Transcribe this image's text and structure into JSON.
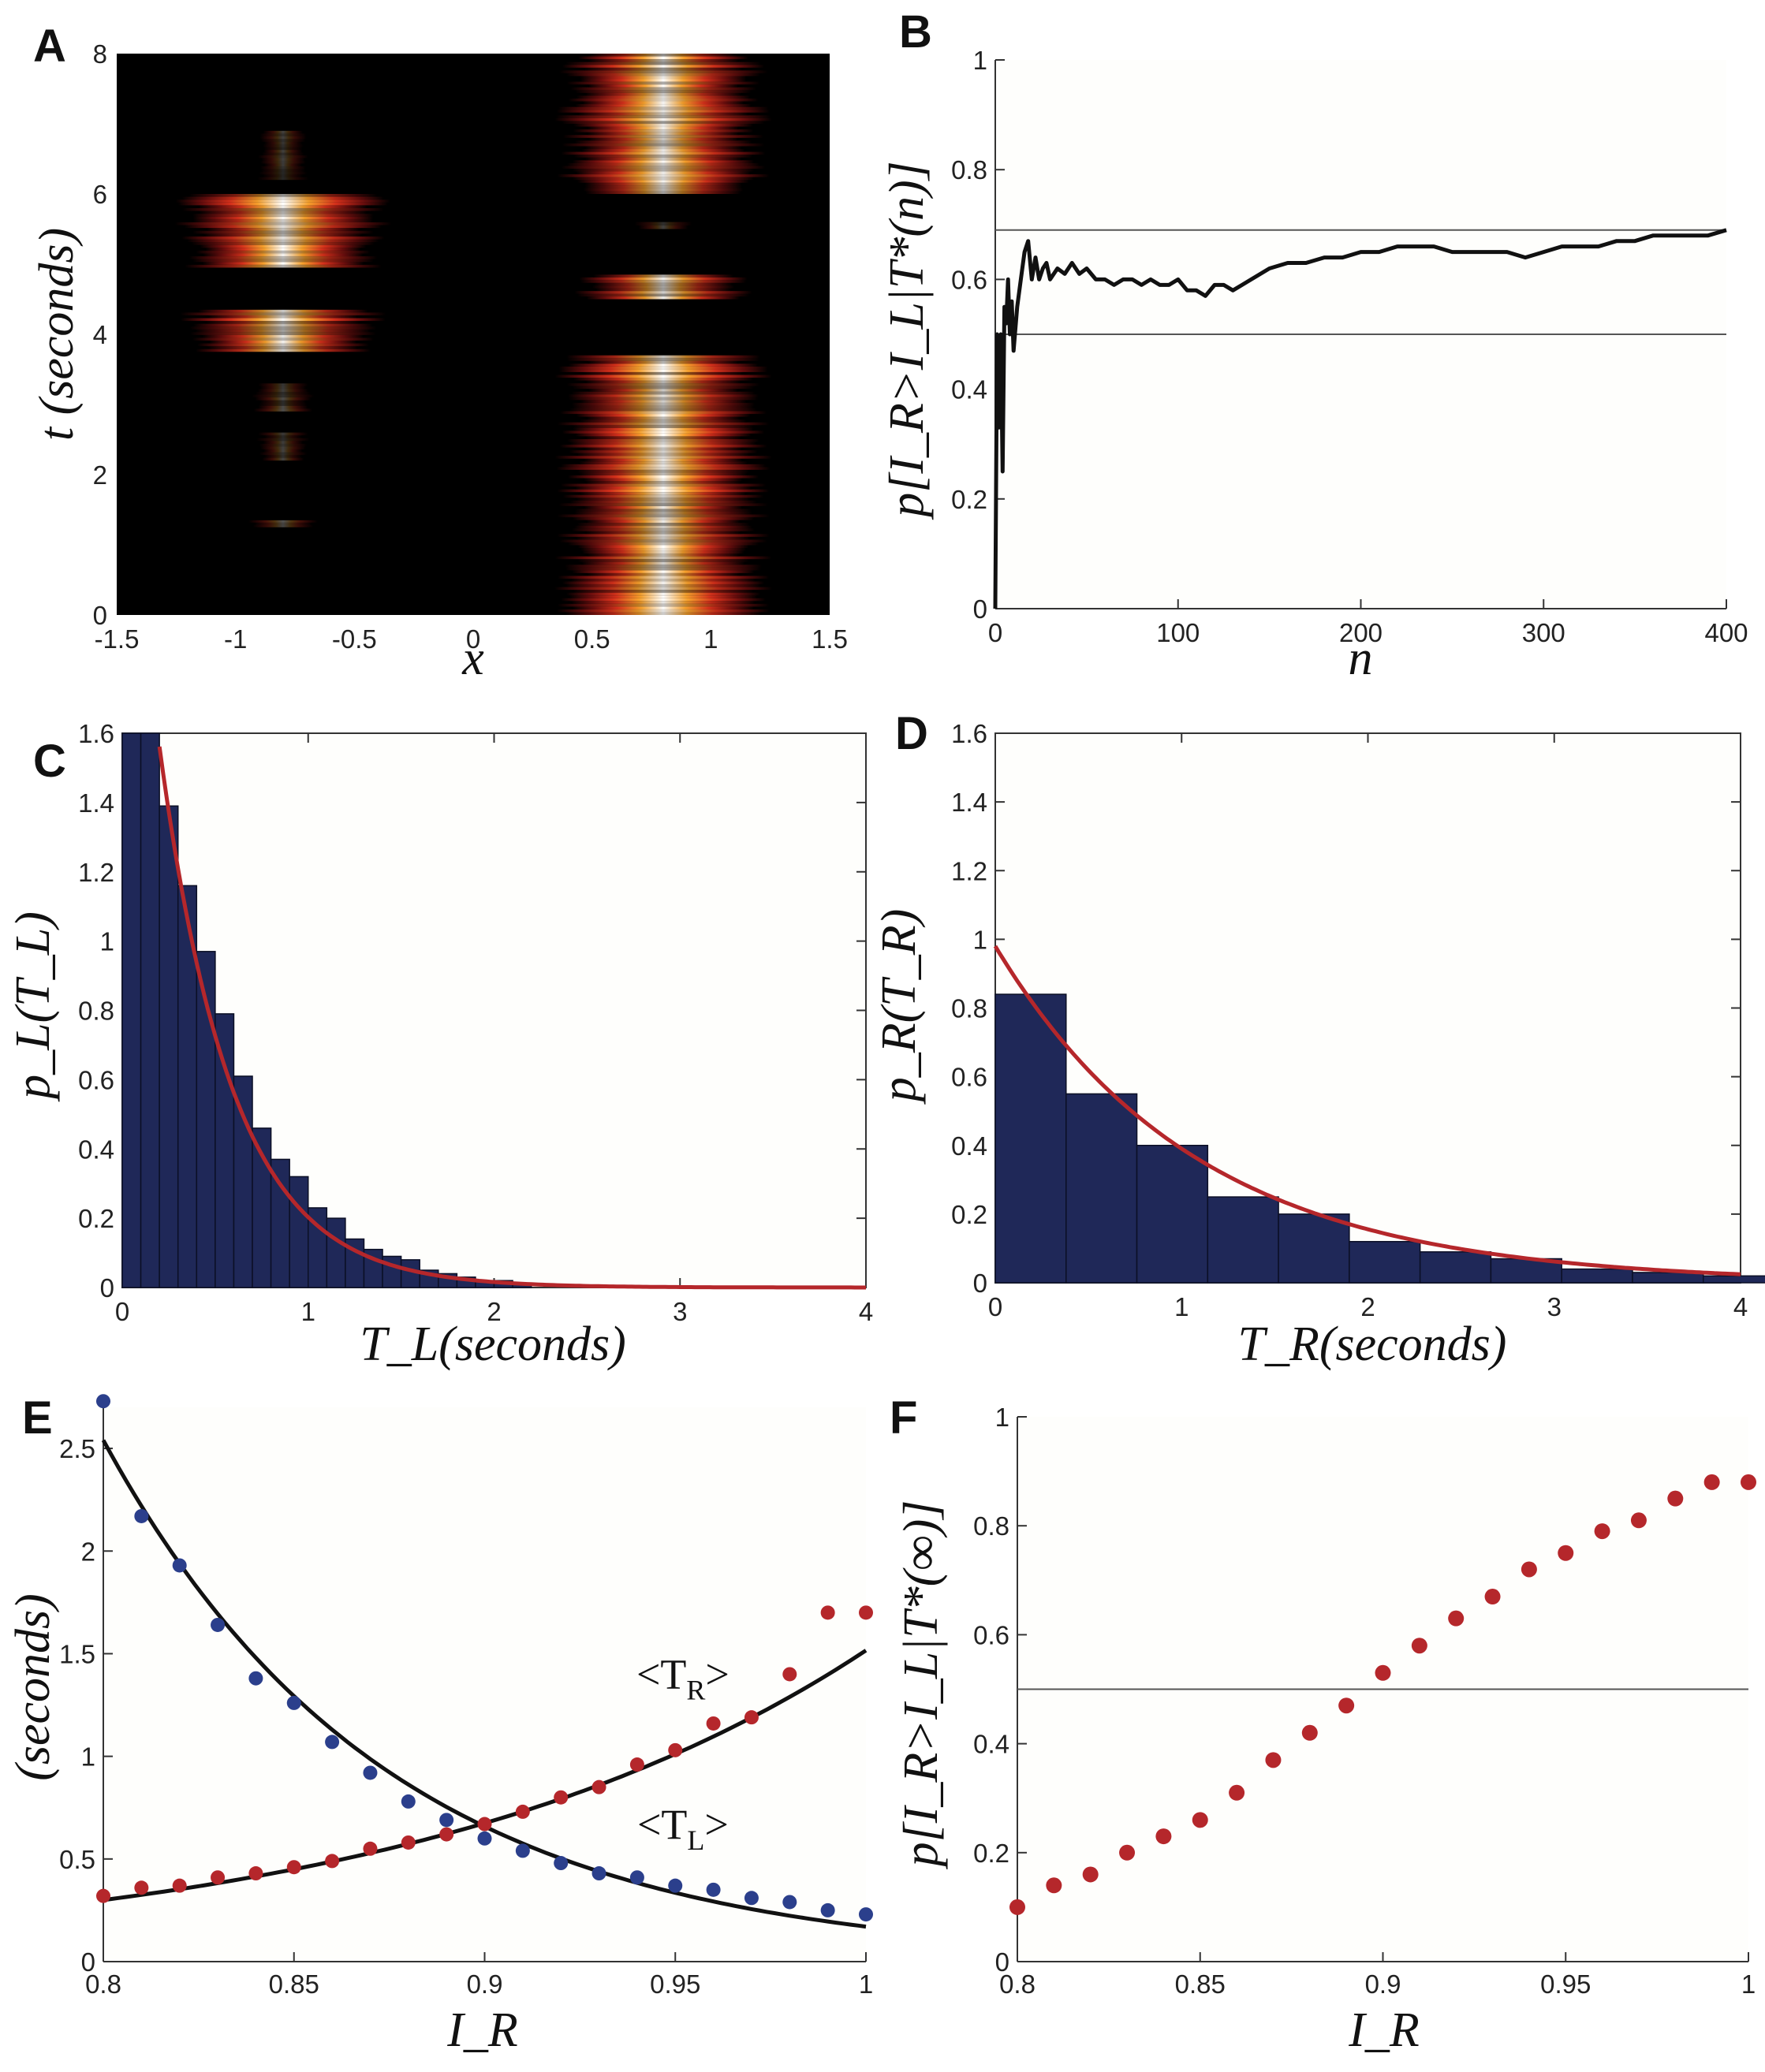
{
  "figure": {
    "panels": {
      "A": {
        "letter": "A"
      },
      "B": {
        "letter": "B"
      },
      "C": {
        "letter": "C"
      },
      "D": {
        "letter": "D"
      },
      "E": {
        "letter": "E"
      },
      "F": {
        "letter": "F"
      }
    }
  },
  "chart_data": [
    {
      "panel": "A",
      "type": "heatmap",
      "xlabel": "x",
      "ylabel": "t (seconds)",
      "xlim": [
        -1.5,
        1.5
      ],
      "ylim": [
        0,
        8
      ],
      "xticks": [
        -1.5,
        -1,
        -0.5,
        0,
        0.5,
        1,
        1.5
      ],
      "xtick_labels": [
        "-1.5",
        "-1",
        "-0.5",
        "0",
        "0.5",
        "1",
        "1.5"
      ],
      "yticks": [
        0,
        2,
        4,
        6,
        8
      ],
      "ytick_labels": [
        "0",
        "2",
        "4",
        "6",
        "8"
      ],
      "colormap": [
        "#000000",
        "#6a0d0d",
        "#d4301b",
        "#f6a02c",
        "#ffffff"
      ],
      "bumps": [
        {
          "center": -0.8,
          "half_width": 0.42,
          "intervals": [
            [
              3.75,
              4.35,
              0.95
            ],
            [
              4.95,
              6.0,
              1.0
            ]
          ],
          "flicker": [
            [
              1.25,
              1.35,
              0.35
            ],
            [
              2.2,
              2.6,
              0.25
            ],
            [
              2.9,
              3.3,
              0.3
            ],
            [
              6.2,
              6.9,
              0.25
            ]
          ]
        },
        {
          "center": 0.8,
          "half_width": 0.42,
          "intervals": [
            [
              0,
              3.7,
              1.0
            ],
            [
              4.5,
              4.85,
              0.9
            ],
            [
              6.0,
              8.0,
              1.0
            ]
          ],
          "flicker": [
            [
              5.5,
              5.6,
              0.3
            ]
          ]
        }
      ]
    },
    {
      "panel": "B",
      "type": "line",
      "xlabel": "n",
      "ylabel": "p[I_R>I_L|T*(n)]",
      "xlim": [
        0,
        400
      ],
      "ylim": [
        0,
        1
      ],
      "xticks": [
        0,
        100,
        200,
        300,
        400
      ],
      "xtick_labels": [
        "0",
        "100",
        "200",
        "300",
        "400"
      ],
      "yticks": [
        0,
        0.2,
        0.4,
        0.6,
        0.8,
        1
      ],
      "ytick_labels": [
        "0",
        "0.2",
        "0.4",
        "0.6",
        "0.8",
        "1"
      ],
      "reference_lines": [
        0.5,
        0.69
      ],
      "x": [
        0,
        1,
        2,
        3,
        4,
        5,
        6,
        7,
        8,
        9,
        10,
        12,
        14,
        16,
        18,
        20,
        22,
        24,
        26,
        28,
        30,
        34,
        38,
        42,
        46,
        50,
        55,
        60,
        65,
        70,
        75,
        80,
        85,
        90,
        95,
        100,
        105,
        110,
        115,
        120,
        125,
        130,
        135,
        140,
        150,
        160,
        170,
        180,
        190,
        200,
        210,
        220,
        230,
        240,
        250,
        260,
        270,
        280,
        290,
        300,
        310,
        320,
        330,
        340,
        350,
        360,
        370,
        380,
        390,
        400
      ],
      "y": [
        0,
        0.5,
        0.33,
        0.5,
        0.25,
        0.55,
        0.52,
        0.6,
        0.5,
        0.56,
        0.47,
        0.55,
        0.6,
        0.65,
        0.67,
        0.6,
        0.64,
        0.6,
        0.62,
        0.63,
        0.6,
        0.62,
        0.61,
        0.63,
        0.61,
        0.62,
        0.6,
        0.6,
        0.59,
        0.6,
        0.6,
        0.59,
        0.6,
        0.59,
        0.59,
        0.6,
        0.58,
        0.58,
        0.57,
        0.59,
        0.59,
        0.58,
        0.59,
        0.6,
        0.62,
        0.63,
        0.63,
        0.64,
        0.64,
        0.65,
        0.65,
        0.66,
        0.66,
        0.66,
        0.65,
        0.65,
        0.65,
        0.65,
        0.64,
        0.65,
        0.66,
        0.66,
        0.66,
        0.67,
        0.67,
        0.68,
        0.68,
        0.68,
        0.68,
        0.69
      ]
    },
    {
      "panel": "C",
      "type": "bar",
      "xlabel": "T_L(seconds)",
      "ylabel": "p_L(T_L)",
      "xlim": [
        0,
        4
      ],
      "ylim": [
        0,
        1.6
      ],
      "xticks": [
        0,
        1,
        2,
        3,
        4
      ],
      "xtick_labels": [
        "0",
        "1",
        "2",
        "3",
        "4"
      ],
      "yticks": [
        0,
        0.2,
        0.4,
        0.6,
        0.8,
        1,
        1.2,
        1.4,
        1.6
      ],
      "ytick_labels": [
        "0",
        "0.2",
        "0.4",
        "0.6",
        "0.8",
        "1",
        "1.2",
        "1.4",
        "1.6"
      ],
      "bin_width": 0.1,
      "values": [
        1.6,
        1.6,
        1.39,
        1.16,
        0.97,
        0.79,
        0.61,
        0.46,
        0.37,
        0.32,
        0.23,
        0.2,
        0.14,
        0.11,
        0.09,
        0.08,
        0.05,
        0.04,
        0.03,
        0.02,
        0.02,
        0.01
      ],
      "fit": {
        "amplitude": 2.6,
        "rate": 2.55
      },
      "bar_color": "#1f2858",
      "fit_color": "#b5272b"
    },
    {
      "panel": "D",
      "type": "bar",
      "xlabel": "T_R(seconds)",
      "ylabel": "p_R(T_R)",
      "xlim": [
        0,
        4
      ],
      "ylim": [
        0,
        1.6
      ],
      "xticks": [
        0,
        1,
        2,
        3,
        4
      ],
      "xtick_labels": [
        "0",
        "1",
        "2",
        "3",
        "4"
      ],
      "yticks": [
        0,
        0.2,
        0.4,
        0.6,
        0.8,
        1,
        1.2,
        1.4,
        1.6
      ],
      "ytick_labels": [
        "0",
        "0.2",
        "0.4",
        "0.6",
        "0.8",
        "1",
        "1.2",
        "1.4",
        "1.6"
      ],
      "bin_width": 0.38,
      "values": [
        0.84,
        0.55,
        0.4,
        0.25,
        0.2,
        0.12,
        0.09,
        0.07,
        0.04,
        0.03,
        0.02
      ],
      "fit": {
        "amplitude": 0.98,
        "rate": 0.92
      },
      "bar_color": "#1f2858",
      "fit_color": "#b5272b"
    },
    {
      "panel": "E",
      "type": "scatter",
      "xlabel": "I_R",
      "ylabel": "(seconds)",
      "xlim": [
        0.8,
        1
      ],
      "ylim": [
        0,
        2.7
      ],
      "xticks": [
        0.8,
        0.85,
        0.9,
        0.95,
        1
      ],
      "xtick_labels": [
        "0.8",
        "0.85",
        "0.9",
        "0.95",
        "1"
      ],
      "yticks": [
        0,
        0.5,
        1,
        1.5,
        2,
        2.5
      ],
      "ytick_labels": [
        "0",
        "0.5",
        "1",
        "1.5",
        "2",
        "2.5"
      ],
      "x": [
        0.8,
        0.81,
        0.82,
        0.83,
        0.84,
        0.85,
        0.86,
        0.87,
        0.88,
        0.89,
        0.9,
        0.91,
        0.92,
        0.93,
        0.94,
        0.95,
        0.96,
        0.97,
        0.98,
        0.99,
        1.0
      ],
      "series": [
        {
          "name": "<T_L>",
          "label_base": "<T",
          "label_sub": "L",
          "label_end": ">",
          "label_xy": [
            0.952,
            0.6
          ],
          "color": "#2b3f8c",
          "values": [
            2.73,
            2.17,
            1.93,
            1.64,
            1.38,
            1.26,
            1.07,
            0.92,
            0.78,
            0.69,
            0.6,
            0.54,
            0.48,
            0.43,
            0.41,
            0.37,
            0.35,
            0.31,
            0.29,
            0.25,
            0.23
          ],
          "fit": {
            "a": 2.54,
            "b": 13.5
          }
        },
        {
          "name": "<T_R>",
          "label_base": "<T",
          "label_sub": "R",
          "label_end": ">",
          "label_xy": [
            0.952,
            1.33
          ],
          "color": "#b5272b",
          "values": [
            0.32,
            0.36,
            0.37,
            0.41,
            0.43,
            0.46,
            0.49,
            0.55,
            0.58,
            0.62,
            0.67,
            0.73,
            0.8,
            0.85,
            0.96,
            1.03,
            1.16,
            1.19,
            1.4,
            1.7,
            1.7
          ],
          "fit": {
            "a": 0.3,
            "b": 8.1
          }
        }
      ]
    },
    {
      "panel": "F",
      "type": "scatter",
      "xlabel": "I_R",
      "ylabel": "p[I_R>I_L|T*(∞)]",
      "xlim": [
        0.8,
        1
      ],
      "ylim": [
        0,
        1
      ],
      "xticks": [
        0.8,
        0.85,
        0.9,
        0.95,
        1
      ],
      "xtick_labels": [
        "0.8",
        "0.85",
        "0.9",
        "0.95",
        "1"
      ],
      "yticks": [
        0,
        0.2,
        0.4,
        0.6,
        0.8,
        1
      ],
      "ytick_labels": [
        "0",
        "0.2",
        "0.4",
        "0.6",
        "0.8",
        "1"
      ],
      "reference_lines": [
        0.5
      ],
      "x": [
        0.8,
        0.81,
        0.82,
        0.83,
        0.84,
        0.85,
        0.86,
        0.87,
        0.88,
        0.89,
        0.9,
        0.91,
        0.92,
        0.93,
        0.94,
        0.95,
        0.96,
        0.97,
        0.98,
        0.99,
        1.0
      ],
      "values": [
        0.1,
        0.14,
        0.16,
        0.2,
        0.23,
        0.26,
        0.31,
        0.37,
        0.42,
        0.47,
        0.53,
        0.58,
        0.63,
        0.67,
        0.72,
        0.75,
        0.79,
        0.81,
        0.85,
        0.88,
        0.88
      ],
      "color": "#b5272b"
    }
  ]
}
